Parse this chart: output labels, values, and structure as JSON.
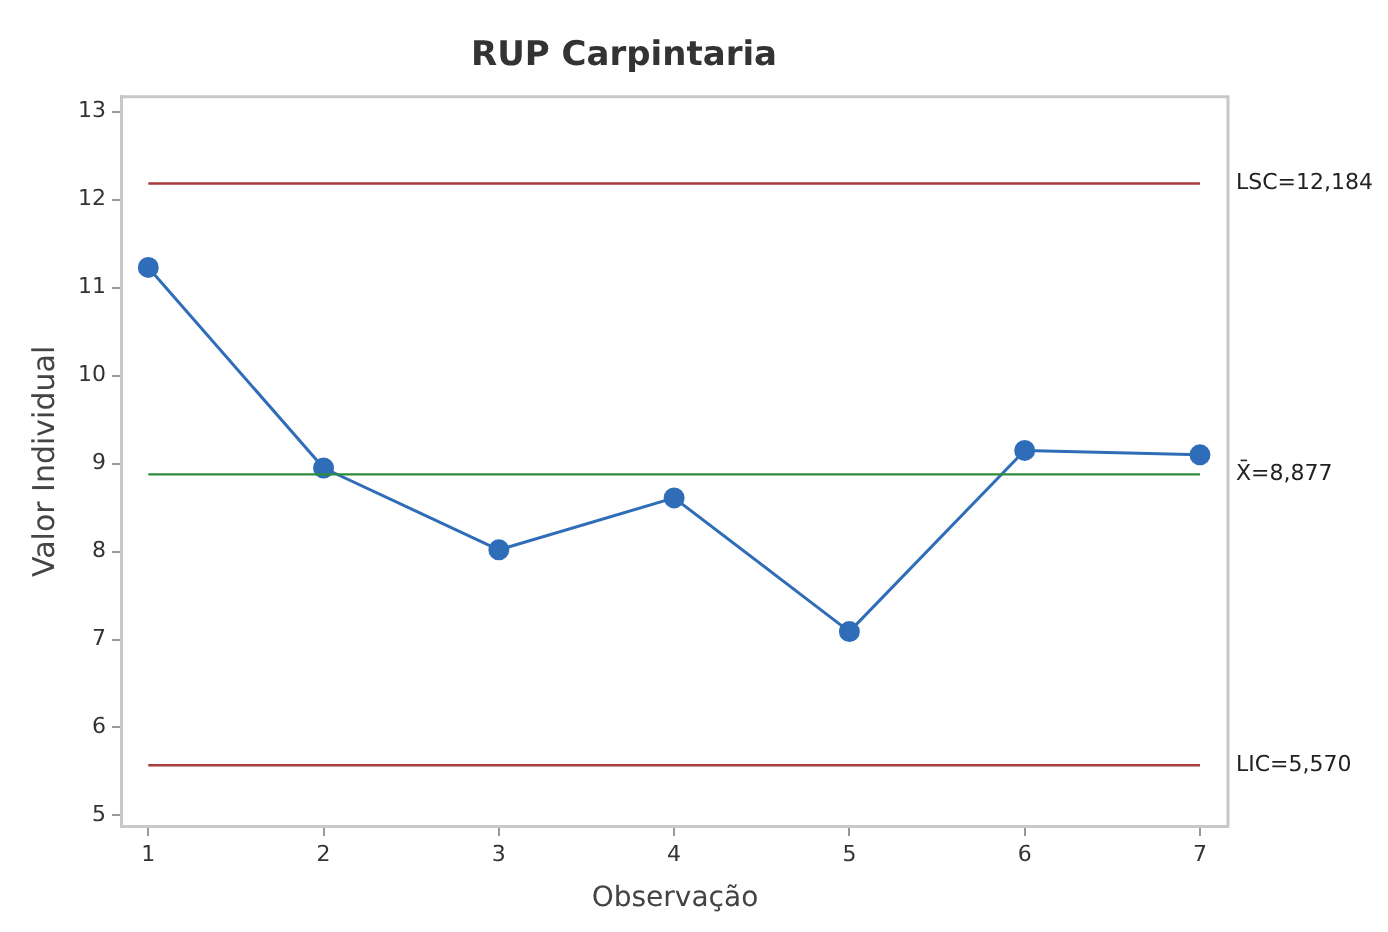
{
  "chart_data": {
    "type": "line",
    "title": "RUP Carpintaria",
    "xlabel": "Observação",
    "ylabel": "Valor Individual",
    "x": [
      1,
      2,
      3,
      4,
      5,
      6,
      7
    ],
    "series": [
      {
        "color": "#2f6db8",
        "values": [
          11.23,
          8.95,
          8.02,
          8.61,
          7.09,
          9.15,
          9.1
        ]
      }
    ],
    "xlim": [
      0.85,
      7.16
    ],
    "xticks": [
      1,
      2,
      3,
      4,
      5,
      6,
      7
    ],
    "ylim": [
      4.88,
      13.17
    ],
    "yticks": [
      5,
      6,
      7,
      8,
      9,
      10,
      11,
      12,
      13
    ],
    "ref_lines": [
      {
        "axis": "y",
        "value": 12.184,
        "label": "LSC=12,184",
        "color": "#a83a3a"
      },
      {
        "axis": "y",
        "value": 8.877,
        "label": "X̄=8,877",
        "color": "#2e8b3e"
      },
      {
        "axis": "y",
        "value": 5.57,
        "label": "LIC=5,570",
        "color": "#a83a3a"
      }
    ],
    "marker": "circle",
    "line_style": "solid",
    "grid": false,
    "legend": false
  }
}
